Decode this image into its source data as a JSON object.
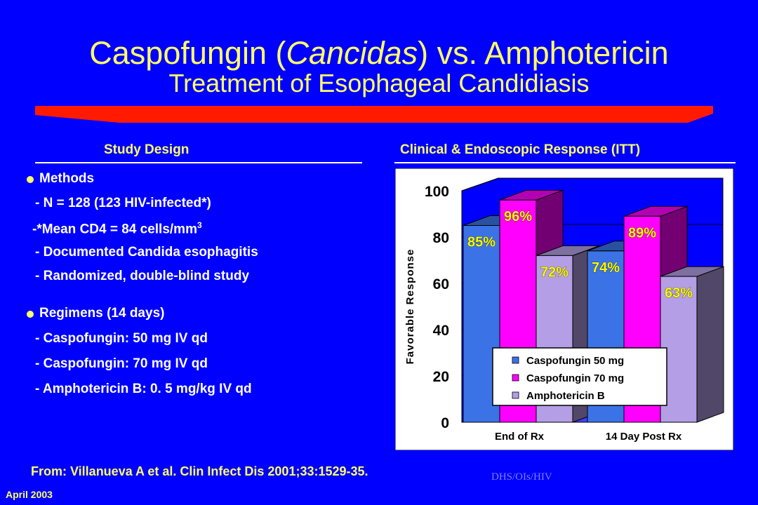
{
  "title": {
    "prefix": "Caspofungin (",
    "italic": "Cancidas",
    "suffix": ") vs. Amphotericin",
    "subtitle": "Treatment of Esophageal Candidiasis"
  },
  "left": {
    "heading": "Study Design",
    "methods": {
      "label": "Methods",
      "lines": [
        "- N = 128 (123 HIV-infected*)",
        "-*Mean CD4 = 84 cells/mm",
        "- Documented Candida esophagitis",
        "- Randomized, double-blind study"
      ],
      "superscript": "3"
    },
    "regimens": {
      "label": "Regimens (14 days)",
      "lines": [
        "- Caspofungin: 50 mg IV qd",
        "- Caspofungin: 70 mg IV qd",
        "- Amphotericin B: 0. 5 mg/kg IV qd"
      ]
    }
  },
  "right": {
    "heading": "Clinical & Endoscopic Response (ITT)"
  },
  "chart_data": {
    "type": "bar",
    "ylabel": "Favorable Response",
    "ylim": [
      0,
      100
    ],
    "yticks": [
      0,
      20,
      40,
      60,
      80,
      100
    ],
    "categories": [
      "End of Rx",
      "14 Day Post Rx"
    ],
    "series": [
      {
        "name": "Caspofungin 50 mg",
        "values": [
          85,
          74
        ],
        "labels": [
          "85%",
          "74%"
        ],
        "color": "#3b73e6"
      },
      {
        "name": "Caspofungin 70 mg",
        "values": [
          96,
          89
        ],
        "labels": [
          "96%",
          "89%"
        ],
        "color": "#ff00ff"
      },
      {
        "name": "Amphotericin B",
        "values": [
          72,
          63
        ],
        "labels": [
          "72%",
          "63%"
        ],
        "color": "#b49ee6"
      }
    ],
    "legend_position": "lower-center",
    "background": "#ffffff",
    "wall_color": "#0000ff"
  },
  "footer": {
    "citation": "From: Villanueva A et al.  Clin Infect Dis 2001;33:1529-35.",
    "credit": "DHS/OIs/HIV",
    "date": "April 2003"
  },
  "colors": {
    "title": "#ffff66",
    "background": "#0000ff",
    "accent_bar": "#ff1a00"
  }
}
